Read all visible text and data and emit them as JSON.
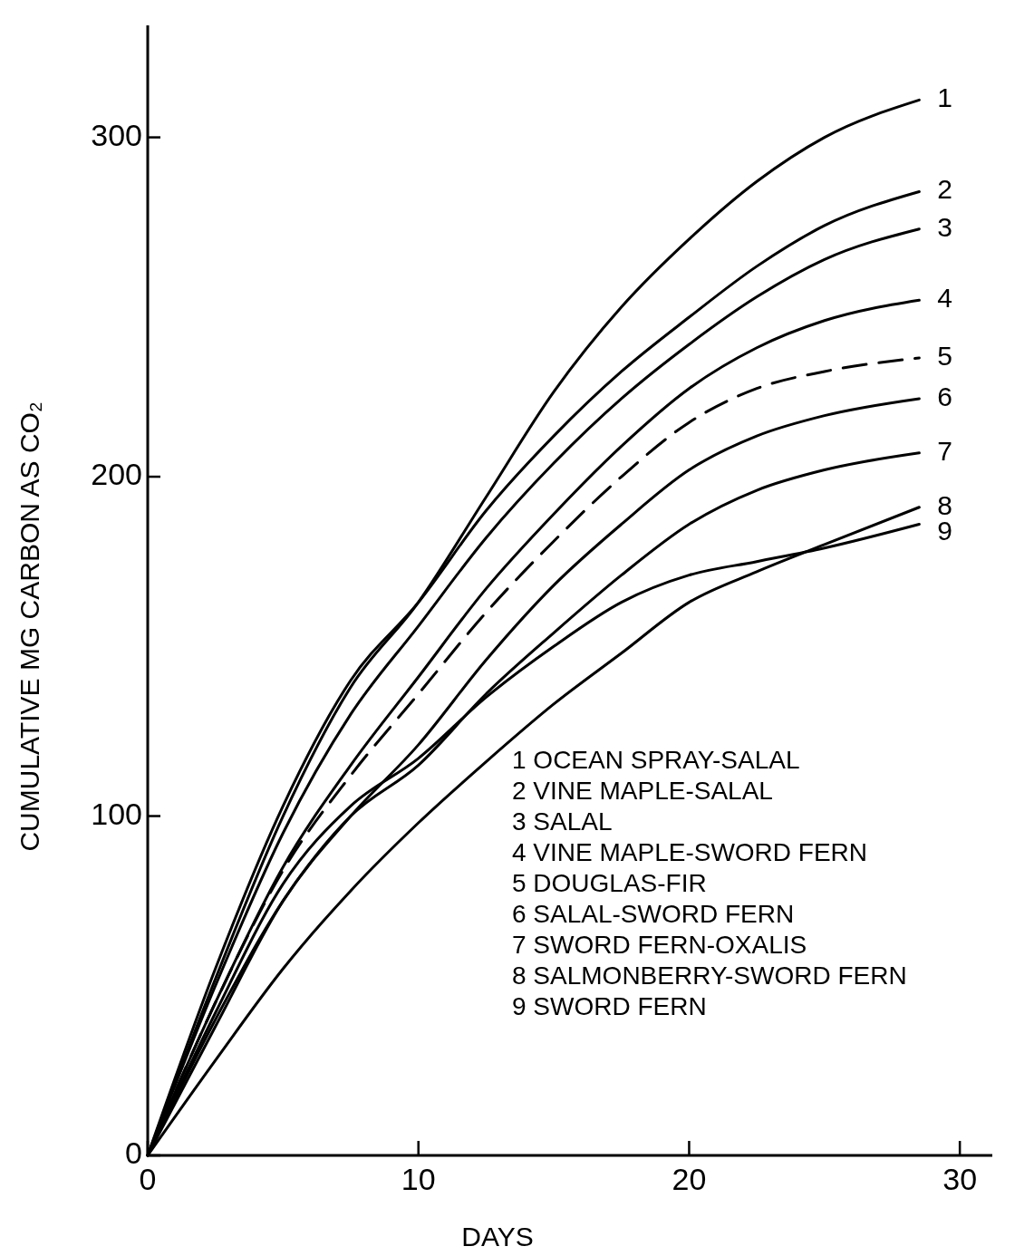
{
  "chart_data": {
    "type": "line",
    "xlabel": "DAYS",
    "ylabel": "CUMULATIVE MG CARBON AS CO₂",
    "x": [
      0,
      2.5,
      5,
      7.5,
      10,
      12.5,
      15,
      17.5,
      20,
      22.5,
      25,
      28.5
    ],
    "xlim": [
      0,
      31.2
    ],
    "xticks": [
      0,
      10,
      20,
      30
    ],
    "ylim": [
      0,
      333
    ],
    "yticks": [
      0,
      100,
      200,
      300
    ],
    "grid": false,
    "marker": "none",
    "series": [
      {
        "name": "1",
        "color": "#000000",
        "values": [
          0,
          52,
          100,
          138,
          163,
          194,
          225,
          250,
          270,
          287,
          300,
          311
        ]
      },
      {
        "name": "2",
        "color": "#000000",
        "values": [
          0,
          55,
          103,
          140,
          163,
          190,
          212,
          231,
          247,
          262,
          274,
          284
        ]
      },
      {
        "name": "3",
        "color": "#000000",
        "values": [
          0,
          50,
          95,
          130,
          156,
          182,
          204,
          223,
          239,
          253,
          264,
          273
        ]
      },
      {
        "name": "4",
        "color": "#000000",
        "values": [
          0,
          45,
          85,
          115,
          141,
          167,
          189,
          209,
          226,
          238,
          246,
          252
        ]
      },
      {
        "name": "5",
        "color": "#000000",
        "line_style": "dashed",
        "values": [
          0,
          45,
          84,
          112,
          136,
          160,
          181,
          200,
          216,
          226,
          231,
          235
        ]
      },
      {
        "name": "6",
        "color": "#000000",
        "values": [
          0,
          38,
          75,
          100,
          121,
          146,
          168,
          186,
          202,
          212,
          218,
          223
        ]
      },
      {
        "name": "7",
        "color": "#000000",
        "values": [
          0,
          40,
          75,
          100,
          115,
          136,
          154,
          171,
          186,
          196,
          202,
          207
        ]
      },
      {
        "name": "8",
        "color": "#000000",
        "values": [
          0,
          28,
          55,
          78,
          98,
          116,
          133,
          148,
          163,
          172,
          180,
          191
        ]
      },
      {
        "name": "9",
        "color": "#000000",
        "values": [
          0,
          42,
          80,
          103,
          117,
          135,
          150,
          163,
          171,
          175,
          179,
          186
        ]
      }
    ],
    "annotations": [
      "1 OCEAN SPRAY-SALAL",
      "2 VINE MAPLE-SALAL",
      "3 SALAL",
      "4 VINE MAPLE-SWORD FERN",
      "5 DOUGLAS-FIR",
      "6 SALAL-SWORD FERN",
      "7 SWORD FERN-OXALIS",
      "8 SALMONBERRY-SWORD FERN",
      "9 SWORD FERN"
    ]
  }
}
